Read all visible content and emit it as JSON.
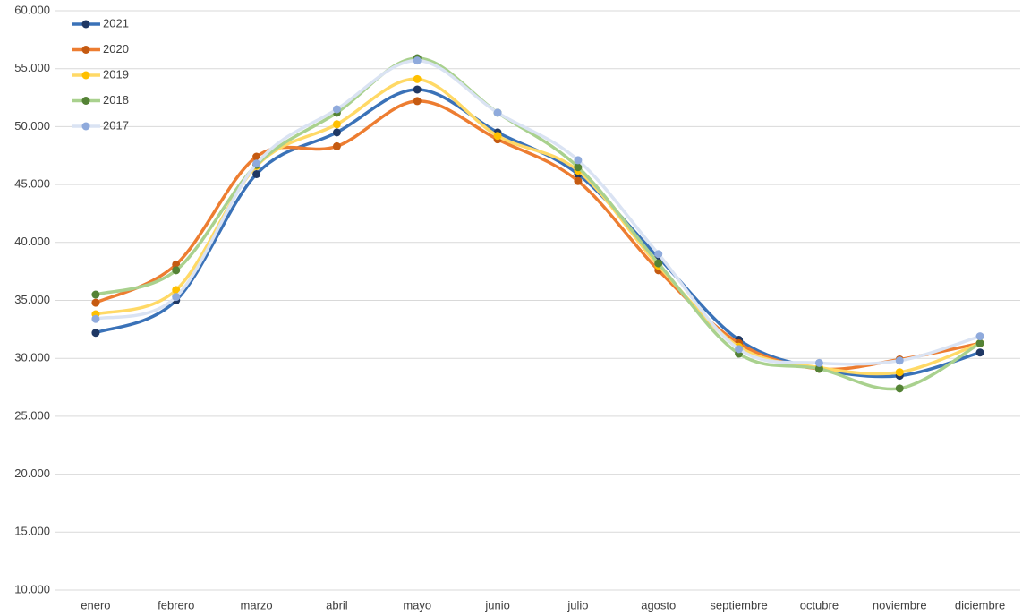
{
  "chart_data": {
    "type": "line",
    "categories": [
      "enero",
      "febrero",
      "marzo",
      "abril",
      "mayo",
      "junio",
      "julio",
      "agosto",
      "septiembre",
      "octubre",
      "noviembre",
      "diciembre"
    ],
    "series": [
      {
        "name": "2021",
        "color": "#3a72b8",
        "marker_color": "#1f3864",
        "values": [
          32200,
          35000,
          45900,
          49500,
          53200,
          49500,
          45900,
          38700,
          31600,
          29100,
          28500,
          30500
        ]
      },
      {
        "name": "2020",
        "color": "#ed7d31",
        "marker_color": "#c55a11",
        "values": [
          34800,
          38100,
          47400,
          48300,
          52200,
          48900,
          45300,
          37600,
          31300,
          29100,
          29900,
          31300
        ]
      },
      {
        "name": "2019",
        "color": "#ffd966",
        "marker_color": "#ffc000",
        "values": [
          33800,
          35900,
          46600,
          50200,
          54100,
          49200,
          46200,
          38000,
          31000,
          29200,
          28800,
          31300
        ]
      },
      {
        "name": "2018",
        "color": "#a9d18e",
        "marker_color": "#548235",
        "values": [
          35500,
          37600,
          46700,
          51200,
          55900,
          51200,
          46500,
          38200,
          30400,
          29100,
          27400,
          31300
        ]
      },
      {
        "name": "2017",
        "color": "#dae3f3",
        "marker_color": "#8faadc",
        "values": [
          33400,
          35300,
          46800,
          51500,
          55700,
          51200,
          47100,
          39000,
          30800,
          29600,
          29800,
          31900
        ]
      }
    ],
    "ylim": [
      10000,
      60000
    ],
    "yticks": [
      {
        "value": 10000,
        "label": "10.000"
      },
      {
        "value": 15000,
        "label": "15.000"
      },
      {
        "value": 20000,
        "label": "20.000"
      },
      {
        "value": 25000,
        "label": "25.000"
      },
      {
        "value": 30000,
        "label": "30.000"
      },
      {
        "value": 35000,
        "label": "35.000"
      },
      {
        "value": 40000,
        "label": "40.000"
      },
      {
        "value": 45000,
        "label": "45.000"
      },
      {
        "value": 50000,
        "label": "50.000"
      },
      {
        "value": 55000,
        "label": "55.000"
      },
      {
        "value": 60000,
        "label": "60.000"
      }
    ],
    "grid": true,
    "smooth": true,
    "legend": "top-left"
  }
}
